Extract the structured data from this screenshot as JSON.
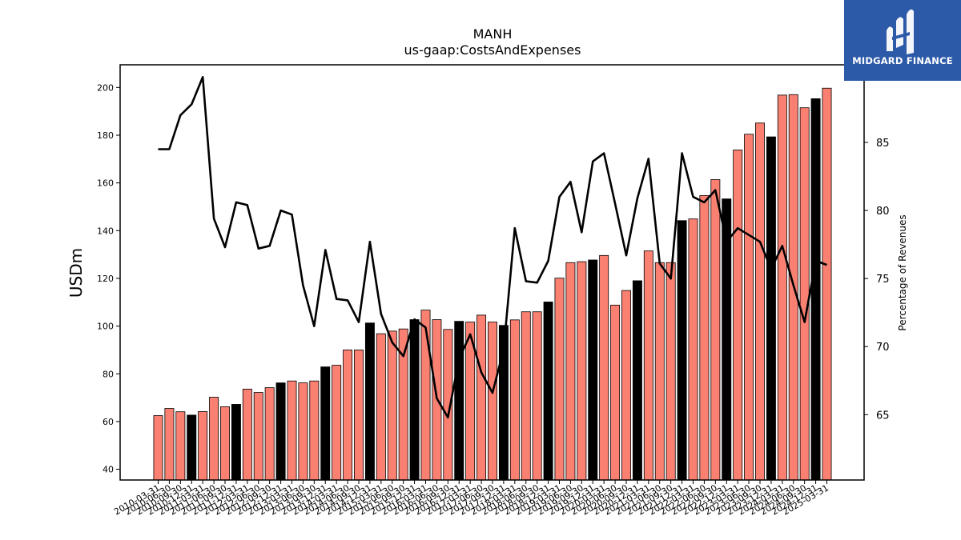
{
  "logo": {
    "text": "MIDGARD FINANCE",
    "bg": "#2d5aa8"
  },
  "chart_data": {
    "type": "bar",
    "title": "MANH",
    "subtitle": "us-gaap:CostsAndExpenses",
    "ylabel": "USDm",
    "y2label": "Percentage of Revenues",
    "ylim": [
      35.5,
      209.5
    ],
    "y2lim": [
      60.2,
      90.7
    ],
    "yticks": [
      40,
      60,
      80,
      100,
      120,
      140,
      160,
      180,
      200
    ],
    "y2ticks": [
      65,
      70,
      75,
      80,
      85
    ],
    "bar_color": "#fa8072",
    "annual_bar_color": "#000000",
    "line_color": "#000000",
    "categories": [
      "2010-03-31",
      "2010-06-30",
      "2010-09-30",
      "2010-12-31",
      "2011-03-31",
      "2011-06-30",
      "2011-09-30",
      "2011-12-31",
      "2012-03-31",
      "2012-06-30",
      "2012-09-30",
      "2012-12-31",
      "2013-03-31",
      "2013-06-30",
      "2013-09-30",
      "2013-12-31",
      "2014-03-31",
      "2014-06-30",
      "2014-09-30",
      "2014-12-31",
      "2015-03-31",
      "2015-06-30",
      "2015-09-30",
      "2015-12-31",
      "2016-03-31",
      "2016-06-30",
      "2016-09-30",
      "2016-12-31",
      "2017-03-31",
      "2017-06-30",
      "2017-09-30",
      "2017-12-31",
      "2018-03-31",
      "2018-06-30",
      "2018-09-30",
      "2018-12-31",
      "2019-03-31",
      "2019-06-30",
      "2019-09-30",
      "2019-12-31",
      "2020-03-31",
      "2020-06-30",
      "2020-09-30",
      "2020-12-31",
      "2021-03-31",
      "2021-06-30",
      "2021-09-30",
      "2021-12-31",
      "2022-03-31",
      "2022-06-30",
      "2022-09-30",
      "2022-12-31",
      "2023-03-31",
      "2023-06-30",
      "2023-09-30",
      "2023-12-31",
      "2024-03-31",
      "2024-06-30",
      "2024-09-30",
      "2024-12-31",
      "2025-03-31"
    ],
    "series": [
      {
        "type": "bar",
        "values": [
          62.5,
          65.5,
          64.1,
          62.7,
          64.2,
          70.2,
          66.2,
          67.2,
          73.6,
          72.2,
          74.2,
          76.2,
          77.0,
          76.2,
          77.0,
          82.9,
          83.6,
          90.0,
          90.0,
          101.3,
          96.8,
          97.9,
          98.8,
          102.7,
          106.7,
          102.7,
          98.6,
          102.0,
          101.7,
          104.6,
          101.7,
          100.3,
          102.6,
          106.0,
          106.0,
          110.1,
          120.1,
          126.6,
          127.0,
          127.7,
          129.6,
          108.8,
          114.9,
          119.0,
          131.5,
          126.6,
          126.6,
          144.2,
          144.9,
          154.7,
          161.4,
          153.3,
          173.8,
          180.4,
          185.1,
          179.3,
          196.8,
          197.0,
          191.5,
          195.3,
          199.7
        ],
        "annual": [
          false,
          false,
          false,
          true,
          false,
          false,
          false,
          true,
          false,
          false,
          false,
          true,
          false,
          false,
          false,
          true,
          false,
          false,
          false,
          true,
          false,
          false,
          false,
          true,
          false,
          false,
          false,
          true,
          false,
          false,
          false,
          true,
          false,
          false,
          false,
          true,
          false,
          false,
          false,
          true,
          false,
          false,
          false,
          true,
          false,
          false,
          false,
          true,
          false,
          false,
          false,
          true,
          false,
          false,
          false,
          true,
          false,
          false,
          false,
          true,
          false
        ]
      },
      {
        "type": "line",
        "axis": "y2",
        "values": [
          84.5,
          84.5,
          87.0,
          87.8,
          89.8,
          79.4,
          77.3,
          80.6,
          80.4,
          77.2,
          77.4,
          80.0,
          79.7,
          74.5,
          71.5,
          77.1,
          73.5,
          73.4,
          71.8,
          77.7,
          72.4,
          70.3,
          69.3,
          72.0,
          71.4,
          66.2,
          64.8,
          69.1,
          70.9,
          68.1,
          66.6,
          69.8,
          78.7,
          74.8,
          74.7,
          76.3,
          81.0,
          82.1,
          78.4,
          83.6,
          84.2,
          80.5,
          76.7,
          80.9,
          83.8,
          76.1,
          75.0,
          84.2,
          81.0,
          80.6,
          81.5,
          77.7,
          78.7,
          78.2,
          77.7,
          75.7,
          77.4,
          74.5,
          71.8,
          76.3,
          76.0
        ]
      }
    ]
  }
}
